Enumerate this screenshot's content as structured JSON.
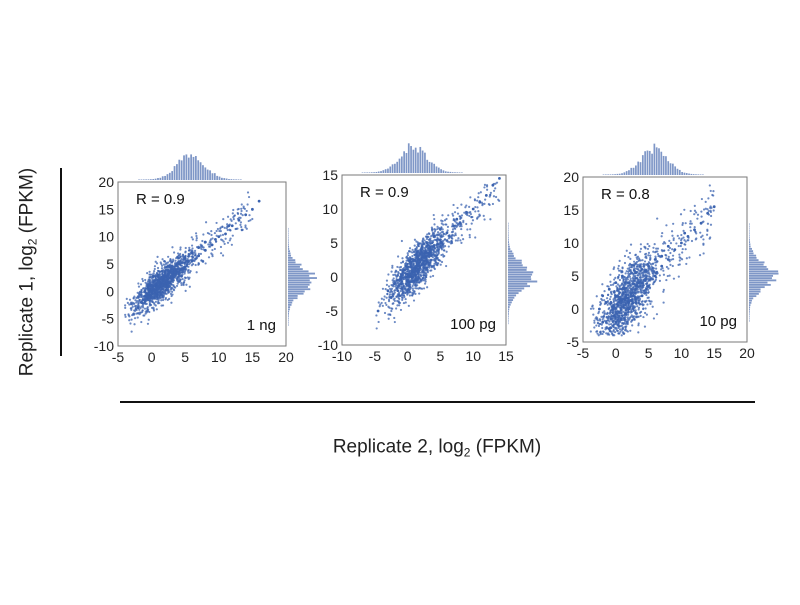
{
  "axes": {
    "ylabel_prefix": "Replicate 1, log",
    "ylabel_sub": "2",
    "ylabel_suffix": " (FPKM)",
    "xlabel_prefix": "Replicate 2, log",
    "xlabel_sub": "2",
    "xlabel_suffix": " (FPKM)"
  },
  "colors": {
    "points": "#3b63b0",
    "histogram": "#7f97c7",
    "frame": "#7a7a7a"
  },
  "chart_data": [
    {
      "type": "scatter",
      "annotation": "R = 0.9",
      "label": "1 ng",
      "xlim": [
        -5,
        20
      ],
      "ylim": [
        -10,
        20
      ],
      "xticks": [
        -5,
        0,
        5,
        10,
        15,
        20
      ],
      "yticks": [
        -10,
        -5,
        0,
        5,
        10,
        15,
        20
      ],
      "grid": false,
      "points": [
        [
          -2,
          -3
        ],
        [
          -1.5,
          -2
        ],
        [
          -1,
          -1.5
        ],
        [
          -1,
          0
        ],
        [
          -0.5,
          -1
        ],
        [
          0,
          -1
        ],
        [
          0,
          0.5
        ],
        [
          0,
          1
        ],
        [
          0.5,
          0
        ],
        [
          0.5,
          2
        ],
        [
          1,
          0.5
        ],
        [
          1,
          1.5
        ],
        [
          1,
          3
        ],
        [
          1.5,
          1
        ],
        [
          1.5,
          2.5
        ],
        [
          2,
          1
        ],
        [
          2,
          2
        ],
        [
          2,
          3.5
        ],
        [
          2.5,
          2.5
        ],
        [
          3,
          2
        ],
        [
          3,
          3.5
        ],
        [
          3,
          4.5
        ],
        [
          3.5,
          3
        ],
        [
          4,
          3.5
        ],
        [
          4,
          5
        ],
        [
          4.5,
          4
        ],
        [
          5,
          4.5
        ],
        [
          5,
          6
        ],
        [
          5.5,
          5.5
        ],
        [
          6,
          5.5
        ],
        [
          6,
          7
        ],
        [
          7,
          6.5
        ],
        [
          7,
          8
        ],
        [
          8,
          7.5
        ],
        [
          8,
          9
        ],
        [
          9,
          8.5
        ],
        [
          9.5,
          9.5
        ],
        [
          10,
          10
        ],
        [
          11,
          10.5
        ],
        [
          11.5,
          12
        ],
        [
          12,
          12
        ],
        [
          13,
          13
        ],
        [
          14,
          14
        ],
        [
          15,
          15
        ],
        [
          16,
          16.5
        ]
      ],
      "point_count_estimate": 3000
    },
    {
      "type": "scatter",
      "annotation": "R = 0.9",
      "label": "100 pg",
      "xlim": [
        -10,
        15
      ],
      "ylim": [
        -10,
        15
      ],
      "xticks": [
        -10,
        -5,
        0,
        5,
        10,
        15
      ],
      "yticks": [
        -10,
        -5,
        0,
        5,
        10,
        15
      ],
      "grid": false,
      "points": [
        [
          -4.5,
          -5
        ],
        [
          -3,
          -2
        ],
        [
          -2.5,
          -3
        ],
        [
          -2,
          -1
        ],
        [
          -1.5,
          -2
        ],
        [
          -1,
          0
        ],
        [
          -1,
          -1
        ],
        [
          -0.5,
          1
        ],
        [
          0,
          0
        ],
        [
          0,
          1.5
        ],
        [
          0.5,
          0.5
        ],
        [
          0.5,
          2
        ],
        [
          1,
          1
        ],
        [
          1,
          2.5
        ],
        [
          1.5,
          2
        ],
        [
          1.5,
          3
        ],
        [
          2,
          2.5
        ],
        [
          2,
          4
        ],
        [
          2.5,
          3
        ],
        [
          3,
          3.5
        ],
        [
          3,
          5
        ],
        [
          3.5,
          4
        ],
        [
          4,
          4.5
        ],
        [
          4,
          6
        ],
        [
          5,
          5.5
        ],
        [
          5,
          7
        ],
        [
          6,
          6.5
        ],
        [
          7,
          7.5
        ],
        [
          7.5,
          8.5
        ],
        [
          8,
          8
        ],
        [
          9,
          9.5
        ],
        [
          10,
          10
        ],
        [
          11,
          11
        ],
        [
          12,
          12
        ],
        [
          13,
          13.5
        ],
        [
          14,
          14.5
        ]
      ],
      "point_count_estimate": 3000
    },
    {
      "type": "scatter",
      "annotation": "R = 0.8",
      "label": "10 pg",
      "xlim": [
        -5,
        20
      ],
      "ylim": [
        -5,
        20
      ],
      "xticks": [
        -5,
        0,
        5,
        10,
        15,
        20
      ],
      "yticks": [
        -5,
        0,
        5,
        10,
        15,
        20
      ],
      "grid": false,
      "points": [
        [
          -2.5,
          0
        ],
        [
          -2,
          -2
        ],
        [
          -2,
          2
        ],
        [
          -1.5,
          1
        ],
        [
          -1,
          -3
        ],
        [
          -1,
          3
        ],
        [
          -0.5,
          0
        ],
        [
          0,
          -2
        ],
        [
          0,
          2
        ],
        [
          0,
          4
        ],
        [
          0.5,
          1
        ],
        [
          1,
          -1
        ],
        [
          1,
          3
        ],
        [
          1,
          5
        ],
        [
          1.5,
          2
        ],
        [
          2,
          0
        ],
        [
          2,
          4
        ],
        [
          2.5,
          2.5
        ],
        [
          3,
          1
        ],
        [
          3,
          3
        ],
        [
          3,
          5.5
        ],
        [
          3.5,
          4
        ],
        [
          4,
          2
        ],
        [
          4,
          6
        ],
        [
          4.5,
          4.5
        ],
        [
          5,
          3.5
        ],
        [
          5,
          6.5
        ],
        [
          6,
          5
        ],
        [
          6,
          7.5
        ],
        [
          7,
          6.5
        ],
        [
          7,
          8
        ],
        [
          8,
          7.5
        ],
        [
          8,
          9.5
        ],
        [
          9,
          9
        ],
        [
          10,
          10
        ],
        [
          10.5,
          11.5
        ],
        [
          11,
          11
        ],
        [
          12,
          12
        ],
        [
          13,
          13
        ],
        [
          14,
          14.5
        ],
        [
          15,
          15.5
        ]
      ],
      "point_count_estimate": 3000
    }
  ]
}
